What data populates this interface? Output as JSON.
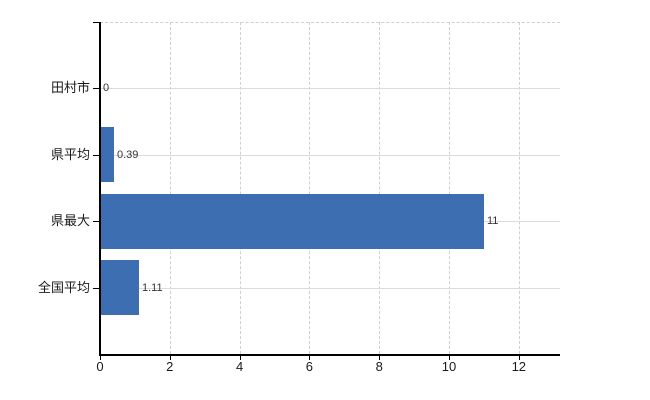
{
  "chart_data": {
    "type": "bar",
    "orientation": "horizontal",
    "title": "",
    "categories": [
      "田村市",
      "県平均",
      "県最大",
      "全国平均"
    ],
    "values": [
      0,
      0.39,
      11,
      1.11
    ],
    "value_labels": [
      "0",
      "0.39",
      "11",
      "1.11"
    ],
    "x_tick_values": [
      0,
      2,
      4,
      6,
      8,
      10,
      12
    ],
    "x_tick_labels": [
      "0",
      "2",
      "4",
      "6",
      "8",
      "10",
      "12"
    ],
    "xlim": [
      0,
      13.2
    ],
    "grid": {
      "vertical": "dashed",
      "horizontal": "solid",
      "top_border": "dashed"
    },
    "legend": "none",
    "bar_color": "#3c6eb1",
    "axis_color": "#000000",
    "horizontal_gridline_color": "#d7ddd7",
    "vertical_gridline_color": "#cfcfcf",
    "text_color": "#1a1a1a",
    "value_label_color": "#333333",
    "background_color": "#ffffff"
  }
}
